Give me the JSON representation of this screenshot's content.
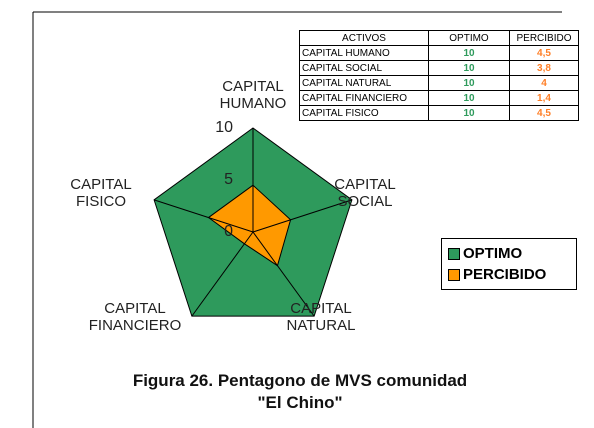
{
  "chart_data": {
    "type": "radar",
    "title": "Figura 26. Pentagono de MVS comunidad\n\"El Chino\"",
    "table_header": "ACTIVOS",
    "categories": [
      "CAPITAL HUMANO",
      "CAPITAL SOCIAL",
      "CAPITAL NATURAL",
      "CAPITAL FINANCIERO",
      "CAPITAL FISICO"
    ],
    "series": [
      {
        "name": "OPTIMO",
        "color": "#2e9a5c",
        "values": [
          10,
          10,
          10,
          10,
          10
        ]
      },
      {
        "name": "PERCIBIDO",
        "color": "#ff9900",
        "values": [
          4.5,
          3.8,
          4,
          1.4,
          4.5
        ],
        "value_labels": [
          "4,5",
          "3,8",
          "4",
          "1,4",
          "4,5"
        ]
      }
    ],
    "rlim": [
      0,
      10
    ],
    "rticks": [
      0,
      5,
      10
    ]
  }
}
